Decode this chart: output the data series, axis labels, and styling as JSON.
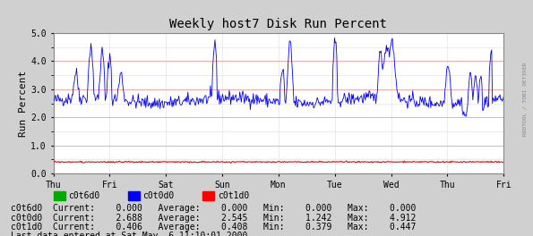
{
  "title": "Weekly host7 Disk Run Percent",
  "ylabel": "Run Percent",
  "ylim": [
    0.0,
    5.0
  ],
  "yticks": [
    0.0,
    1.0,
    2.0,
    3.0,
    4.0,
    5.0
  ],
  "x_day_labels": [
    "Thu",
    "Fri",
    "Sat",
    "Sun",
    "Mon",
    "Tue",
    "Wed",
    "Thu",
    "Fri"
  ],
  "bg_color": "#d0d0d0",
  "plot_bg_color": "#ffffff",
  "grid_color_major_y": "#ff9999",
  "grid_color_minor": "#dddddd",
  "line_green_color": "#00aa00",
  "line_blue_color": "#0000ff",
  "line_red_color": "#ff0000",
  "legend_items": [
    {
      "label": "c0t6d0",
      "color": "#00aa00"
    },
    {
      "label": "c0t0d0",
      "color": "#0000ff"
    },
    {
      "label": "c0t1d0",
      "color": "#ff0000"
    }
  ],
  "stats": [
    {
      "name": "c0t6d0",
      "current": "0.000",
      "average": "0.000",
      "min": "0.000",
      "max": "0.000"
    },
    {
      "name": "c0t0d0",
      "current": "2.688",
      "average": "2.545",
      "min": "1.242",
      "max": "4.912"
    },
    {
      "name": "c0t1d0",
      "current": "0.406",
      "average": "0.408",
      "min": "0.379",
      "max": "0.447"
    }
  ],
  "footer": "Last data entered at Sat May  6 11:10:01 2000.",
  "right_label": "RRDTOOL / TOBI OETIKER",
  "n_points": 600
}
